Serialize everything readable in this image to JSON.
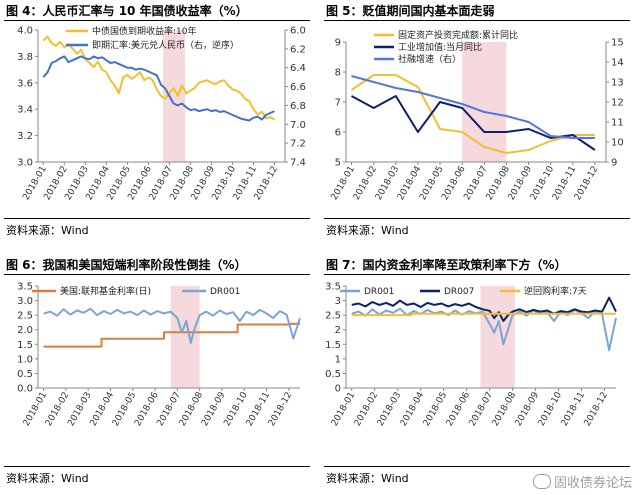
{
  "source_label": "资料来源：Wind",
  "watermark": "固收债券论坛",
  "chart_data": [
    {
      "type": "line",
      "title": "图 4：人民币汇率与 10 年国债收益率（%）",
      "categories": [
        "2018-01",
        "2018-02",
        "2018-03",
        "2018-04",
        "2018-05",
        "2018-06",
        "2018-07",
        "2018-08",
        "2018-09",
        "2018-10",
        "2018-11",
        "2018-12"
      ],
      "ylim": [
        3.0,
        4.0
      ],
      "y2lim": [
        6.0,
        7.4
      ],
      "y2_reversed": true,
      "yticks": [
        3.0,
        3.2,
        3.4,
        3.6,
        3.8,
        4.0
      ],
      "y2ticks": [
        6.0,
        6.2,
        6.4,
        6.6,
        6.8,
        7.0,
        7.2,
        7.4
      ],
      "shade": [
        5.7,
        6.75
      ],
      "legend_position": "top-center",
      "series": [
        {
          "name": "中债国债到期收益率:10年",
          "axis": "left",
          "color": "#f0c030",
          "x": [
            0,
            0.2,
            0.4,
            0.6,
            0.8,
            1.0,
            1.2,
            1.4,
            1.6,
            1.8,
            2.0,
            2.2,
            2.4,
            2.6,
            2.8,
            3.0,
            3.2,
            3.4,
            3.6,
            3.8,
            4.0,
            4.2,
            4.4,
            4.6,
            4.8,
            5.0,
            5.2,
            5.4,
            5.6,
            5.8,
            6.0,
            6.2,
            6.4,
            6.6,
            6.8,
            7.0,
            7.2,
            7.4,
            7.6,
            7.8,
            8.0,
            8.2,
            8.4,
            8.6,
            8.8,
            9.0,
            9.2,
            9.4,
            9.6,
            9.8,
            10.0,
            10.2,
            10.4,
            10.6,
            10.8,
            11.0
          ],
          "values": [
            3.92,
            3.95,
            3.9,
            3.88,
            3.91,
            3.87,
            3.89,
            3.86,
            3.82,
            3.85,
            3.78,
            3.75,
            3.72,
            3.76,
            3.7,
            3.68,
            3.62,
            3.58,
            3.52,
            3.64,
            3.66,
            3.63,
            3.65,
            3.68,
            3.62,
            3.64,
            3.62,
            3.55,
            3.5,
            3.48,
            3.52,
            3.56,
            3.5,
            3.58,
            3.52,
            3.54,
            3.56,
            3.6,
            3.61,
            3.62,
            3.6,
            3.59,
            3.61,
            3.62,
            3.58,
            3.55,
            3.54,
            3.52,
            3.48,
            3.46,
            3.4,
            3.36,
            3.38,
            3.33,
            3.34,
            3.32
          ]
        },
        {
          "name": "即期汇率:美元兑人民币（右，逆序）",
          "axis": "right",
          "color": "#4472c4",
          "x": [
            0,
            0.2,
            0.4,
            0.6,
            0.8,
            1.0,
            1.2,
            1.4,
            1.6,
            1.8,
            2.0,
            2.2,
            2.4,
            2.6,
            2.8,
            3.0,
            3.2,
            3.4,
            3.6,
            3.8,
            4.0,
            4.2,
            4.4,
            4.6,
            4.8,
            5.0,
            5.2,
            5.4,
            5.6,
            5.8,
            6.0,
            6.2,
            6.4,
            6.6,
            6.8,
            7.0,
            7.2,
            7.4,
            7.6,
            7.8,
            8.0,
            8.2,
            8.4,
            8.6,
            8.8,
            9.0,
            9.2,
            9.4,
            9.6,
            9.8,
            10.0,
            10.2,
            10.4,
            10.6,
            10.8,
            11.0
          ],
          "values": [
            6.5,
            6.45,
            6.35,
            6.33,
            6.3,
            6.28,
            6.34,
            6.32,
            6.3,
            6.28,
            6.3,
            6.31,
            6.28,
            6.3,
            6.29,
            6.32,
            6.35,
            6.34,
            6.36,
            6.38,
            6.4,
            6.4,
            6.42,
            6.41,
            6.42,
            6.44,
            6.46,
            6.48,
            6.58,
            6.62,
            6.7,
            6.78,
            6.8,
            6.78,
            6.82,
            6.85,
            6.84,
            6.86,
            6.85,
            6.84,
            6.86,
            6.85,
            6.87,
            6.86,
            6.88,
            6.9,
            6.92,
            6.94,
            6.95,
            6.96,
            6.93,
            6.92,
            6.95,
            6.9,
            6.88,
            6.86
          ]
        }
      ]
    },
    {
      "type": "line",
      "title": "图 5：贬值期间国内基本面走弱",
      "categories": [
        "2018-01",
        "2018-02",
        "2018-03",
        "2018-04",
        "2018-05",
        "2018-06",
        "2018-07",
        "2018-08",
        "2018-09",
        "2018-10",
        "2018-11",
        "2018-12"
      ],
      "ylim": [
        5,
        9
      ],
      "y2lim": [
        9,
        15
      ],
      "yticks": [
        5,
        6,
        7,
        8,
        9
      ],
      "y2ticks": [
        9,
        10,
        11,
        12,
        13,
        14,
        15
      ],
      "shade": [
        5.0,
        7.0
      ],
      "legend_position": "top-right",
      "series": [
        {
          "name": "固定资产投资完成额:累计同比",
          "axis": "left",
          "color": "#f0c030",
          "x": [
            0,
            1,
            2,
            3,
            4,
            5,
            6,
            7,
            8,
            9,
            10,
            11
          ],
          "values": [
            7.4,
            7.9,
            7.9,
            7.5,
            6.1,
            6.0,
            5.5,
            5.3,
            5.4,
            5.7,
            5.9,
            5.9
          ]
        },
        {
          "name": "工业增加值:当月同比",
          "axis": "left",
          "color": "#0f1f6e",
          "x": [
            0,
            1,
            2,
            3,
            4,
            5,
            6,
            7,
            8,
            9,
            10,
            11
          ],
          "values": [
            7.2,
            6.8,
            7.2,
            6.0,
            7.0,
            6.8,
            6.0,
            6.0,
            6.1,
            5.8,
            5.9,
            5.4
          ]
        },
        {
          "name": "社融增速（右）",
          "axis": "right",
          "color": "#5577dd",
          "x": [
            0,
            1,
            2,
            3,
            4,
            5,
            6,
            7,
            8,
            9,
            10,
            11
          ],
          "values": [
            13.3,
            13.0,
            12.7,
            12.5,
            12.2,
            11.9,
            11.5,
            11.3,
            11.0,
            10.3,
            10.2,
            10.2
          ]
        }
      ]
    },
    {
      "type": "line",
      "title": "图 6：我国和美国短端利率阶段性倒挂（%）",
      "categories": [
        "2018-01",
        "2018-02",
        "2018-03",
        "2018-04",
        "2018-05",
        "2018-06",
        "2018-07",
        "2018-08",
        "2018-09",
        "2018-10",
        "2018-11",
        "2018-12"
      ],
      "ylim": [
        0,
        3.5
      ],
      "yticks": [
        0.0,
        0.5,
        1.0,
        1.5,
        2.0,
        2.5,
        3.0,
        3.5
      ],
      "shade": [
        5.7,
        7.0
      ],
      "legend_position": "top-left",
      "series": [
        {
          "name": "美国:联邦基金利率(日)",
          "color": "#e07b39",
          "x": [
            0,
            2.6,
            2.6,
            5.4,
            5.4,
            8.7,
            8.7,
            11.0,
            11.0,
            11.5
          ],
          "values": [
            1.42,
            1.42,
            1.69,
            1.69,
            1.91,
            1.91,
            2.18,
            2.18,
            2.2,
            2.2
          ]
        },
        {
          "name": "DR001",
          "color": "#7aa6d6",
          "x": [
            0,
            0.3,
            0.6,
            0.9,
            1.2,
            1.5,
            1.8,
            2.1,
            2.4,
            2.7,
            3.0,
            3.3,
            3.6,
            3.9,
            4.2,
            4.5,
            4.8,
            5.1,
            5.4,
            5.7,
            6.0,
            6.2,
            6.4,
            6.6,
            6.8,
            7.0,
            7.3,
            7.6,
            7.9,
            8.2,
            8.5,
            8.8,
            9.1,
            9.4,
            9.7,
            10.0,
            10.3,
            10.6,
            10.9,
            11.2,
            11.5
          ],
          "values": [
            2.55,
            2.62,
            2.48,
            2.7,
            2.52,
            2.66,
            2.58,
            2.72,
            2.5,
            2.64,
            2.54,
            2.68,
            2.56,
            2.62,
            2.5,
            2.66,
            2.52,
            2.64,
            2.56,
            2.62,
            2.4,
            1.9,
            2.3,
            1.55,
            2.1,
            2.5,
            2.62,
            2.48,
            2.66,
            2.54,
            2.6,
            2.3,
            2.62,
            2.5,
            2.68,
            2.56,
            2.4,
            2.64,
            2.52,
            1.7,
            2.4
          ]
        }
      ]
    },
    {
      "type": "line",
      "title": "图 7：国内资金利率降至政策利率下方（%）",
      "categories": [
        "2018-01",
        "2018-02",
        "2018-03",
        "2018-04",
        "2018-05",
        "2018-06",
        "2018-07",
        "2018-08",
        "2018-09",
        "2018-10",
        "2018-11",
        "2018-12"
      ],
      "ylim": [
        0,
        3.5
      ],
      "yticks": [
        0,
        0.5,
        1,
        1.5,
        2,
        2.5,
        3,
        3.5
      ],
      "shade": [
        5.6,
        7.1
      ],
      "legend_position": "top-left",
      "series": [
        {
          "name": "DR001",
          "color": "#7aa6d6",
          "x": [
            0,
            0.3,
            0.6,
            0.9,
            1.2,
            1.5,
            1.8,
            2.1,
            2.4,
            2.7,
            3.0,
            3.3,
            3.6,
            3.9,
            4.2,
            4.5,
            4.8,
            5.1,
            5.4,
            5.7,
            6.0,
            6.2,
            6.4,
            6.6,
            6.8,
            7.0,
            7.3,
            7.6,
            7.9,
            8.2,
            8.5,
            8.8,
            9.1,
            9.4,
            9.7,
            10.0,
            10.3,
            10.6,
            10.9,
            11.2,
            11.5
          ],
          "values": [
            2.55,
            2.62,
            2.48,
            2.7,
            2.52,
            2.66,
            2.58,
            2.72,
            2.5,
            2.64,
            2.54,
            2.68,
            2.56,
            2.62,
            2.5,
            2.66,
            2.52,
            2.64,
            2.56,
            2.62,
            2.2,
            1.9,
            2.3,
            1.5,
            2.0,
            2.5,
            2.62,
            2.48,
            2.66,
            2.54,
            2.6,
            2.3,
            2.62,
            2.5,
            2.68,
            2.56,
            2.4,
            2.64,
            2.52,
            1.3,
            2.4
          ]
        },
        {
          "name": "DR007",
          "color": "#0f1f6e",
          "x": [
            0,
            0.3,
            0.6,
            0.9,
            1.2,
            1.5,
            1.8,
            2.1,
            2.4,
            2.7,
            3.0,
            3.3,
            3.6,
            3.9,
            4.2,
            4.5,
            4.8,
            5.1,
            5.4,
            5.7,
            6.0,
            6.2,
            6.4,
            6.6,
            6.8,
            7.0,
            7.3,
            7.6,
            7.9,
            8.2,
            8.5,
            8.8,
            9.1,
            9.4,
            9.7,
            10.0,
            10.3,
            10.6,
            10.9,
            11.2,
            11.5
          ],
          "values": [
            2.85,
            2.9,
            2.8,
            2.95,
            2.85,
            2.92,
            2.82,
            3.0,
            2.85,
            2.9,
            2.78,
            2.92,
            2.85,
            2.9,
            2.8,
            2.88,
            2.82,
            2.9,
            2.78,
            2.7,
            2.65,
            2.4,
            2.6,
            2.3,
            2.5,
            2.62,
            2.7,
            2.6,
            2.68,
            2.62,
            2.66,
            2.55,
            2.64,
            2.6,
            2.7,
            2.62,
            2.6,
            2.66,
            2.62,
            3.1,
            2.62
          ]
        },
        {
          "name": "逆回购利率:7天",
          "color": "#f0c030",
          "x": [
            0,
            2.6,
            2.6,
            11.5
          ],
          "values": [
            2.5,
            2.5,
            2.55,
            2.55
          ]
        }
      ]
    }
  ]
}
